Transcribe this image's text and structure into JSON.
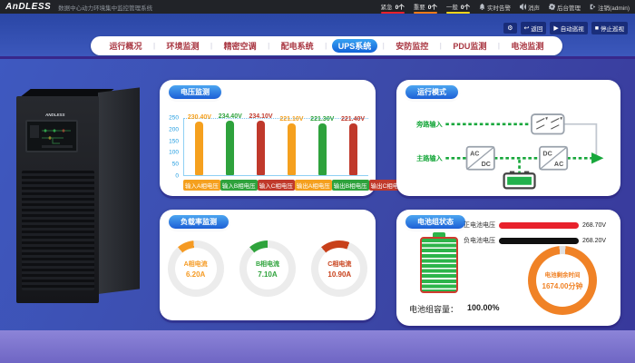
{
  "header": {
    "logo": "AnDLESS",
    "title": "数据中心动力环境集中监控管理系统",
    "alarms": [
      {
        "label": "紧急",
        "count": "0个",
        "color": "#e8212c"
      },
      {
        "label": "重要",
        "count": "0个",
        "color": "#f07a18"
      },
      {
        "label": "一般",
        "count": "0个",
        "color": "#f3d41a"
      }
    ],
    "menu": [
      {
        "label": "实时告警",
        "icon": "bell-icon"
      },
      {
        "label": "消声",
        "icon": "speaker-icon"
      },
      {
        "label": "后台管理",
        "icon": "gear-icon"
      },
      {
        "label": "注销(admin)",
        "icon": "logout-icon"
      }
    ]
  },
  "toolbar": {
    "back": "返回",
    "auto": "自动巡视",
    "stop": "停止巡视"
  },
  "nav": {
    "tabs": [
      {
        "label": "运行概况",
        "active": false
      },
      {
        "label": "环境监测",
        "active": false
      },
      {
        "label": "精密空调",
        "active": false
      },
      {
        "label": "配电系统",
        "active": false
      },
      {
        "label": "UPS系统",
        "active": true
      },
      {
        "label": "安防监控",
        "active": false
      },
      {
        "label": "PDU监测",
        "active": false
      },
      {
        "label": "电池监测",
        "active": false
      }
    ]
  },
  "device": {
    "brand": "ANDLESS"
  },
  "panels": {
    "voltage": {
      "title": "电压监测"
    },
    "mode": {
      "title": "运行模式",
      "bypass_label": "旁路输入",
      "main_label": "主路输入",
      "box1_top": "AC",
      "box1_bottom": "DC",
      "box2_top": "DC",
      "box2_bottom": "AC"
    },
    "load": {
      "title": "负载率监测"
    },
    "battery": {
      "title": "电池组状态",
      "rows": [
        {
          "label": "正电池电压",
          "value": "268.70V",
          "color": "#e8212c"
        },
        {
          "label": "负电池电压",
          "value": "268.20V",
          "color": "#101010"
        }
      ],
      "capacity_label": "电池组容量：",
      "capacity_value": "100.00%"
    }
  },
  "chart_data": [
    {
      "type": "bar",
      "title": "电压监测",
      "categories": [
        "输入A相电压",
        "输入B相电压",
        "输入C相电压",
        "输出A相电压",
        "输出B相电压",
        "输出C相电压"
      ],
      "values": [
        230.4,
        234.4,
        234.1,
        221.1,
        221.3,
        221.4
      ],
      "unit": "V",
      "colors": [
        "#f5a01e",
        "#2ea23c",
        "#c0392b",
        "#f5a01e",
        "#2ea23c",
        "#c0392b"
      ],
      "xlabel": "",
      "ylabel": "",
      "ylim": [
        0,
        250
      ],
      "yticks": [
        0,
        50,
        100,
        150,
        200,
        250
      ],
      "grid": "top-dotted",
      "legend": "none"
    },
    {
      "type": "donut",
      "title": "负载率监测",
      "gauges": [
        {
          "label": "A相电流",
          "value": 6.2,
          "unit": "A",
          "color": "#f59a23"
        },
        {
          "label": "B相电流",
          "value": 7.1,
          "unit": "A",
          "color": "#2fa33c"
        },
        {
          "label": "C相电流",
          "value": 10.9,
          "unit": "A",
          "color": "#c8401a"
        }
      ]
    },
    {
      "type": "donut",
      "title": "电池剩余时间",
      "label": "电池剩余时间",
      "value": 1674.0,
      "unit": "分钟",
      "display": "1674.00分钟",
      "color": "#f08226"
    }
  ]
}
